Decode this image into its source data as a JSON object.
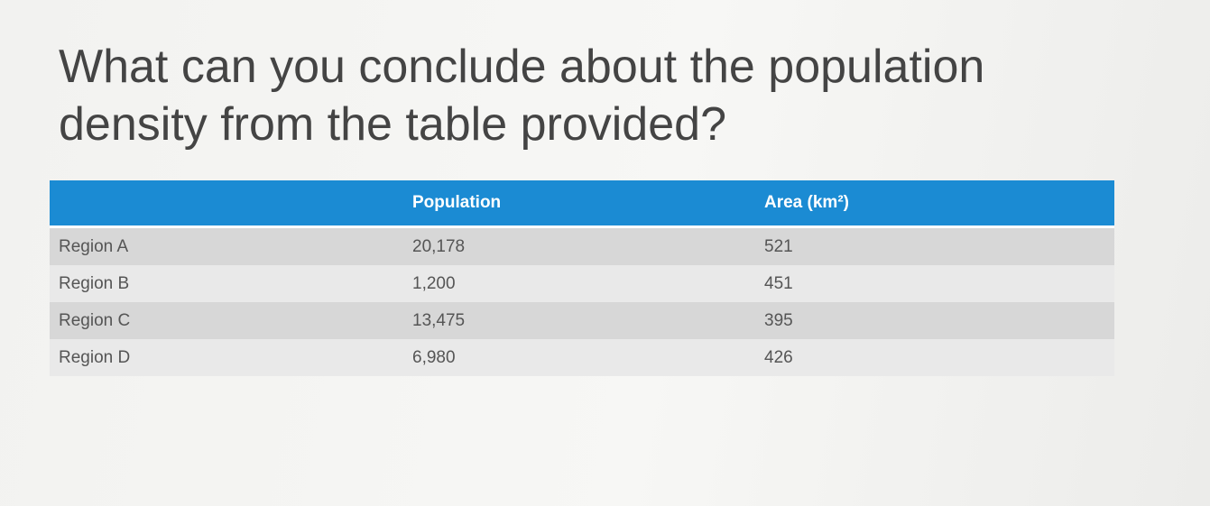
{
  "slide": {
    "title": "What can you conclude about the population density from the table provided?",
    "table": {
      "header": [
        "Population",
        "Area (km²)"
      ],
      "rows": [
        [
          "Region A",
          "20,178",
          "521"
        ],
        [
          "Region B",
          "1,200",
          "451"
        ],
        [
          "Region C",
          "13,475",
          "395"
        ],
        [
          "Region D",
          "6,980",
          "426"
        ]
      ]
    }
  }
}
